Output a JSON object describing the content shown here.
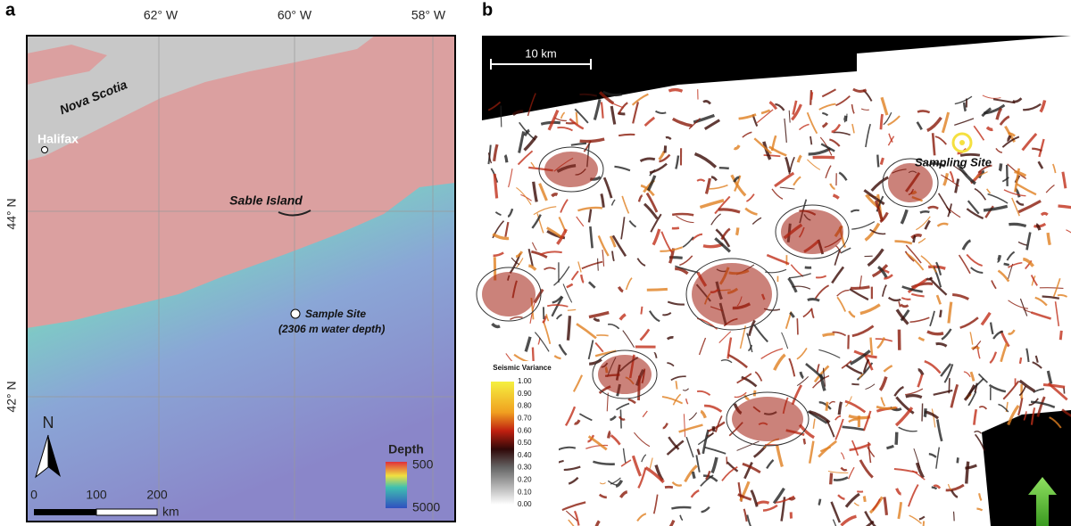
{
  "panel_a": {
    "label": "a",
    "lon_labels": [
      "62° W",
      "60° W",
      "58° W"
    ],
    "lat_labels": [
      "44° N",
      "42° N"
    ],
    "places": {
      "nova_scotia": "Nova Scotia",
      "halifax": "Halifax",
      "sable_island": "Sable Island",
      "sample_site": "Sample Site",
      "sample_depth": "(2306 m water depth)"
    },
    "north": "N",
    "scale": {
      "ticks": [
        "0",
        "100",
        "200"
      ],
      "unit": "km"
    },
    "depth_legend": {
      "title": "Depth",
      "top": "500",
      "bottom": "5000"
    }
  },
  "panel_b": {
    "label": "b",
    "scale": "10 km",
    "site": "Sampling Site",
    "legend": {
      "title": "Seismic Variance",
      "ticks": [
        "1.00",
        "0.90",
        "0.80",
        "0.70",
        "0.60",
        "0.50",
        "0.40",
        "0.30",
        "0.20",
        "0.10",
        "0.00"
      ]
    },
    "north": "N"
  }
}
